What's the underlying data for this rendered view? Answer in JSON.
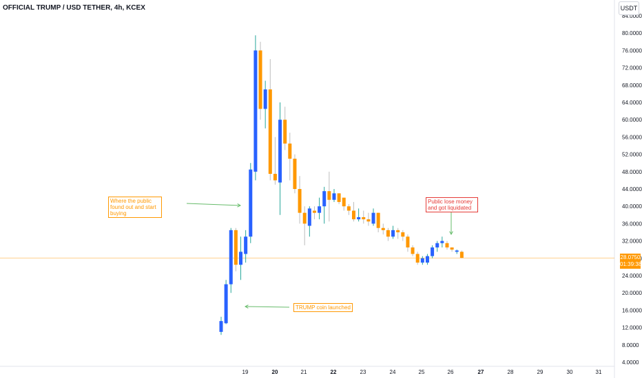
{
  "header": {
    "title": "OFFICIAL TRUMP / USD TETHER, 4h, KCEX",
    "currency": "USDT"
  },
  "price_tag": {
    "price": "28.0750",
    "countdown": "01:39:38"
  },
  "annotations": {
    "public_found": "Where the public found out and start buying",
    "coin_launched": "TRUMP coin launched",
    "liquidated": "Public lose money and got liquidated"
  },
  "colors": {
    "up": "#2962ff",
    "down": "#ff9800",
    "arrow": "#66bb6a",
    "price_line": "#ff9800",
    "annotation_red": "#e53935"
  },
  "chart_data": {
    "type": "candlestick",
    "title": "OFFICIAL TRUMP / USD TETHER, 4h, KCEX",
    "ylim": [
      4,
      84
    ],
    "y_ticks": [
      "4.0000",
      "8.0000",
      "12.0000",
      "16.0000",
      "20.0000",
      "24.0000",
      "28.0000",
      "32.0000",
      "36.0000",
      "40.0000",
      "44.0000",
      "48.0000",
      "52.0000",
      "56.0000",
      "60.0000",
      "64.0000",
      "68.0000",
      "72.0000",
      "76.0000",
      "80.0000",
      "84.0000"
    ],
    "x_ticks": [
      "19",
      "20",
      "21",
      "22",
      "23",
      "24",
      "25",
      "26",
      "27",
      "28",
      "29",
      "30",
      "31"
    ],
    "bold_x_ticks": [
      "20",
      "22",
      "27"
    ],
    "last_price": 28.075,
    "candles": [
      {
        "o": 11.0,
        "h": 14.5,
        "l": 10.3,
        "c": 13.5
      },
      {
        "o": 13.0,
        "h": 23.0,
        "l": 12.8,
        "c": 22.0
      },
      {
        "o": 22.0,
        "h": 35.0,
        "l": 20.0,
        "c": 34.5
      },
      {
        "o": 34.5,
        "h": 35.0,
        "l": 25.0,
        "c": 26.5
      },
      {
        "o": 26.5,
        "h": 33.0,
        "l": 23.0,
        "c": 29.5
      },
      {
        "o": 29.0,
        "h": 34.5,
        "l": 27.0,
        "c": 33.0
      },
      {
        "o": 33.0,
        "h": 50.0,
        "l": 31.5,
        "c": 48.5
      },
      {
        "o": 48.0,
        "h": 79.5,
        "l": 46.0,
        "c": 76.0
      },
      {
        "o": 76.0,
        "h": 78.0,
        "l": 60.0,
        "c": 62.5
      },
      {
        "o": 62.5,
        "h": 69.0,
        "l": 58.0,
        "c": 67.0
      },
      {
        "o": 67.0,
        "h": 74.0,
        "l": 46.0,
        "c": 47.5
      },
      {
        "o": 47.5,
        "h": 56.0,
        "l": 45.0,
        "c": 46.0
      },
      {
        "o": 45.5,
        "h": 64.0,
        "l": 38.0,
        "c": 60.0
      },
      {
        "o": 60.0,
        "h": 63.0,
        "l": 53.0,
        "c": 54.5
      },
      {
        "o": 54.5,
        "h": 57.0,
        "l": 46.0,
        "c": 51.0
      },
      {
        "o": 51.0,
        "h": 52.0,
        "l": 43.0,
        "c": 44.0
      },
      {
        "o": 44.0,
        "h": 47.0,
        "l": 36.0,
        "c": 38.5
      },
      {
        "o": 38.5,
        "h": 40.0,
        "l": 31.0,
        "c": 36.0
      },
      {
        "o": 35.5,
        "h": 40.0,
        "l": 33.0,
        "c": 39.5
      },
      {
        "o": 39.0,
        "h": 40.0,
        "l": 37.0,
        "c": 38.5
      },
      {
        "o": 38.5,
        "h": 42.0,
        "l": 37.0,
        "c": 40.0
      },
      {
        "o": 40.0,
        "h": 44.5,
        "l": 36.0,
        "c": 43.5
      },
      {
        "o": 43.5,
        "h": 48.0,
        "l": 36.5,
        "c": 41.5
      },
      {
        "o": 41.5,
        "h": 44.0,
        "l": 41.0,
        "c": 43.0
      },
      {
        "o": 43.0,
        "h": 43.0,
        "l": 40.5,
        "c": 41.0
      },
      {
        "o": 42.0,
        "h": 42.0,
        "l": 39.0,
        "c": 40.0
      },
      {
        "o": 40.0,
        "h": 40.5,
        "l": 38.0,
        "c": 39.0
      },
      {
        "o": 39.0,
        "h": 41.0,
        "l": 36.5,
        "c": 37.0
      },
      {
        "o": 37.0,
        "h": 39.5,
        "l": 36.5,
        "c": 37.5
      },
      {
        "o": 37.5,
        "h": 39.0,
        "l": 36.0,
        "c": 37.0
      },
      {
        "o": 37.0,
        "h": 38.5,
        "l": 35.5,
        "c": 36.5
      },
      {
        "o": 36.0,
        "h": 39.5,
        "l": 35.5,
        "c": 38.5
      },
      {
        "o": 38.5,
        "h": 38.5,
        "l": 34.0,
        "c": 35.0
      },
      {
        "o": 35.0,
        "h": 36.0,
        "l": 33.5,
        "c": 34.5
      },
      {
        "o": 34.5,
        "h": 35.0,
        "l": 32.0,
        "c": 33.0
      },
      {
        "o": 33.0,
        "h": 35.5,
        "l": 32.5,
        "c": 34.5
      },
      {
        "o": 34.5,
        "h": 35.0,
        "l": 32.5,
        "c": 34.0
      },
      {
        "o": 34.0,
        "h": 34.5,
        "l": 32.0,
        "c": 33.0
      },
      {
        "o": 33.0,
        "h": 33.5,
        "l": 29.5,
        "c": 30.5
      },
      {
        "o": 30.5,
        "h": 31.0,
        "l": 28.5,
        "c": 29.0
      },
      {
        "o": 29.0,
        "h": 29.5,
        "l": 26.5,
        "c": 27.0
      },
      {
        "o": 27.0,
        "h": 28.5,
        "l": 26.5,
        "c": 28.0
      },
      {
        "o": 27.0,
        "h": 29.0,
        "l": 26.5,
        "c": 28.5
      },
      {
        "o": 28.5,
        "h": 31.0,
        "l": 28.0,
        "c": 30.5
      },
      {
        "o": 30.5,
        "h": 32.0,
        "l": 29.5,
        "c": 31.5
      },
      {
        "o": 31.5,
        "h": 33.0,
        "l": 30.5,
        "c": 32.0
      },
      {
        "o": 31.5,
        "h": 32.0,
        "l": 30.0,
        "c": 30.5
      },
      {
        "o": 30.5,
        "h": 30.5,
        "l": 29.5,
        "c": 30.0
      },
      {
        "o": 29.5,
        "h": 30.0,
        "l": 29.0,
        "c": 29.8
      },
      {
        "o": 29.5,
        "h": 29.8,
        "l": 28.0,
        "c": 28.1
      }
    ]
  }
}
